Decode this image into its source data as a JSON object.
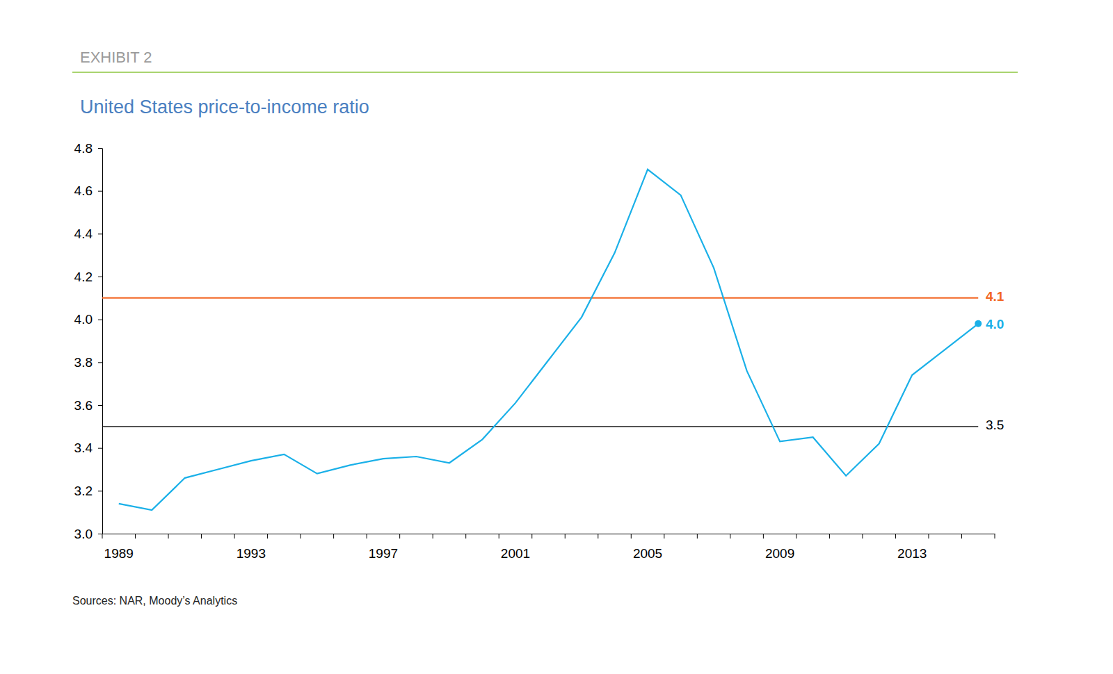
{
  "chart_data": {
    "type": "line",
    "header": "EXHIBIT 2",
    "title": "United States price-to-income ratio",
    "source": "Sources: NAR, Moody’s Analytics",
    "categories": [
      "1989",
      null,
      null,
      null,
      "1993",
      null,
      null,
      null,
      "1997",
      null,
      null,
      null,
      "2001",
      null,
      null,
      null,
      "2005",
      null,
      null,
      null,
      "2009",
      null,
      null,
      null,
      "2013",
      null,
      null
    ],
    "series": [
      {
        "color": "#1ab0e8",
        "values": [
          3.14,
          3.11,
          3.26,
          3.3,
          3.34,
          3.37,
          3.28,
          3.32,
          3.35,
          3.36,
          3.33,
          3.44,
          3.61,
          3.81,
          4.01,
          4.31,
          4.7,
          4.58,
          4.24,
          3.76,
          3.43,
          3.45,
          3.27,
          3.42,
          3.74,
          3.86,
          3.98
        ],
        "end_label": "4.0"
      }
    ],
    "reference_lines": [
      {
        "value": 4.1,
        "label": "4.1",
        "color": "#f26522"
      },
      {
        "value": 3.5,
        "label": "3.5",
        "color": "#000000"
      }
    ],
    "ylim": [
      3.0,
      4.8
    ],
    "yticks": [
      {
        "value": 3.0,
        "label": "3.0"
      },
      3.2,
      3.4,
      3.6,
      3.8,
      {
        "value": 4.0,
        "label": "4.0"
      },
      4.2,
      4.4,
      4.6,
      4.8
    ],
    "grid": false
  }
}
